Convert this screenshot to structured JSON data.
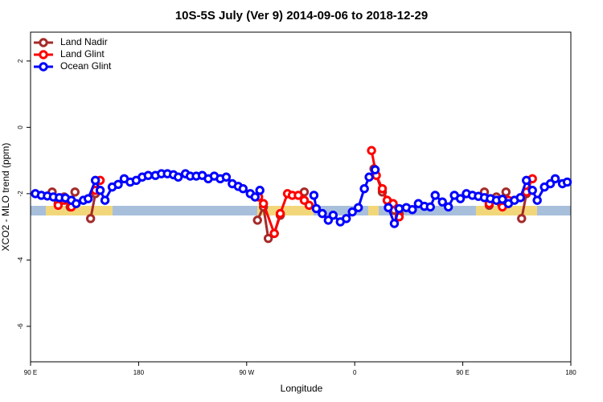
{
  "chart_data": {
    "type": "line",
    "title": "10S-5S July (Ver 9)   2014-09-06 to 2018-12-29",
    "x_label": "Longitude",
    "y_label": "XCO2 - MLO trend (ppm)",
    "xlim": [
      90,
      540
    ],
    "xticks": [
      {
        "value": 90,
        "label": "90 E"
      },
      180,
      {
        "value": 270,
        "label": "90 W"
      },
      {
        "value": 360,
        "label": "0"
      },
      {
        "value": 450,
        "label": "90 E"
      },
      {
        "value": 540,
        "label": "180"
      }
    ],
    "ylim": [
      -7.07,
      2.87
    ],
    "yticks": [
      -6,
      -4,
      -2,
      0,
      2
    ],
    "legend": "top-left",
    "series": [
      {
        "name": "Land Nadir",
        "color": "#a52a2a",
        "x": [
          108,
          113,
          118,
          123,
          127,
          null,
          140,
          144,
          null,
          279,
          284,
          288,
          293,
          298,
          null,
          318,
          null,
          376,
          383,
          388,
          393,
          397,
          null,
          468,
          472,
          478,
          482,
          486,
          null,
          499,
          503
        ],
        "values": [
          -1.95,
          -2.3,
          -2.1,
          -2.4,
          -1.95,
          null,
          -2.75,
          -2.0,
          null,
          -2.8,
          -2.4,
          -3.35,
          -3.2,
          -2.65,
          null,
          -1.95,
          null,
          -1.25,
          -1.95,
          -2.25,
          -2.5,
          -2.6,
          null,
          -1.95,
          -2.35,
          -2.1,
          -2.3,
          -1.95,
          null,
          -2.75,
          -2.0
        ]
      },
      {
        "name": "Land Glint",
        "color": "#ff0000",
        "x": [
          113,
          118,
          124,
          null,
          144,
          148,
          null,
          280,
          284,
          293,
          298,
          304,
          308,
          313,
          318,
          322,
          null,
          374,
          378,
          383,
          387,
          392,
          397,
          null,
          472,
          478,
          483,
          488,
          null,
          503,
          508
        ],
        "values": [
          -2.35,
          -2.2,
          -2.4,
          null,
          -1.9,
          -1.6,
          null,
          -2.1,
          -2.3,
          -3.2,
          -2.6,
          -2.0,
          -2.05,
          -2.05,
          -2.2,
          -2.35,
          null,
          -0.7,
          -1.45,
          -1.85,
          -2.2,
          -2.3,
          -2.7,
          null,
          -2.3,
          -2.2,
          -2.4,
          -2.2,
          null,
          -1.95,
          -1.55
        ]
      },
      {
        "name": "Ocean Glint",
        "color": "#0000ff",
        "x": [
          94,
          99,
          104,
          109,
          114,
          119,
          124,
          128,
          134,
          138,
          144,
          148,
          152,
          158,
          163,
          168,
          173,
          178,
          183,
          188,
          194,
          199,
          204,
          209,
          213,
          219,
          223,
          228,
          233,
          238,
          243,
          248,
          253,
          258,
          263,
          267,
          273,
          277,
          281,
          null,
          326,
          328,
          333,
          338,
          342,
          348,
          353,
          358,
          363,
          368,
          372,
          377,
          null,
          388,
          393,
          397,
          403,
          408,
          413,
          418,
          423,
          427,
          433,
          438,
          443,
          448,
          453,
          458,
          463,
          468,
          473,
          478,
          483,
          488,
          493,
          498,
          503,
          508,
          512,
          518,
          523,
          527,
          533,
          537
        ],
        "values": [
          -2.0,
          -2.05,
          -2.07,
          -2.1,
          -2.12,
          -2.13,
          -2.2,
          -2.3,
          -2.2,
          -2.15,
          -1.6,
          -1.9,
          -2.2,
          -1.8,
          -1.72,
          -1.55,
          -1.65,
          -1.6,
          -1.5,
          -1.45,
          -1.45,
          -1.4,
          -1.4,
          -1.43,
          -1.5,
          -1.4,
          -1.47,
          -1.47,
          -1.45,
          -1.55,
          -1.47,
          -1.55,
          -1.5,
          -1.7,
          -1.78,
          -1.85,
          -2.0,
          -2.1,
          -1.9,
          null,
          -2.05,
          -2.45,
          -2.6,
          -2.8,
          -2.65,
          -2.85,
          -2.75,
          -2.55,
          -2.42,
          -1.85,
          -1.5,
          -1.28,
          null,
          -2.42,
          -2.9,
          -2.45,
          -2.42,
          -2.48,
          -2.3,
          -2.38,
          -2.4,
          -2.05,
          -2.25,
          -2.4,
          -2.05,
          -2.15,
          -2.0,
          -2.05,
          -2.08,
          -2.12,
          -2.15,
          -2.2,
          -2.17,
          -2.3,
          -2.2,
          -2.12,
          -1.6,
          -1.9,
          -2.2,
          -1.8,
          -1.7,
          -1.55,
          -1.7,
          -1.65
        ]
      }
    ]
  }
}
